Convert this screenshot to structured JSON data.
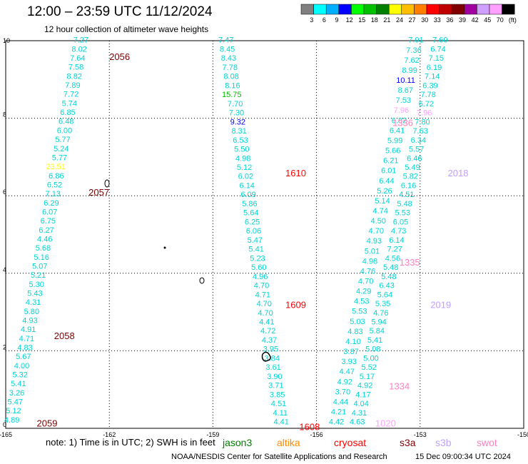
{
  "title": "12:00 – 23:59 UTC 11/12/2024",
  "subtitle": "12 hour collection of altimeter wave heights",
  "footer_note": "note:  1) Time is in UTC; 2) SWH is in feet",
  "credit": "NOAA/NESDIS Center for Satellite Applications and Research",
  "timestamp": "15 Dec 09:00:34 UTC 2024",
  "colors": {
    "grid": "#000000",
    "text_default": "#00d4d4"
  },
  "colorbar": {
    "labels": [
      "3",
      "6",
      "9",
      "12",
      "15",
      "18",
      "21",
      "24",
      "27",
      "30",
      "33",
      "36",
      "39",
      "42",
      "45",
      "70",
      "(ft)"
    ],
    "colors": [
      "#808080",
      "#00ffff",
      "#00b0ff",
      "#0000ff",
      "#00ff00",
      "#00c000",
      "#008000",
      "#ffff00",
      "#ffbf00",
      "#ff8000",
      "#ff0000",
      "#c00000",
      "#800000",
      "#a000a0",
      "#d0a0ff",
      "#ffa0ff",
      "#000000"
    ]
  },
  "satellites": [
    {
      "name": "jason3",
      "color": "#008000"
    },
    {
      "name": "altika",
      "color": "#ff8c00"
    },
    {
      "name": "cryosat",
      "color": "#ff0000"
    },
    {
      "name": "s3a",
      "color": "#800000"
    },
    {
      "name": "s3b",
      "color": "#c0a0ff"
    },
    {
      "name": "swot",
      "color": "#ff80c0"
    }
  ],
  "chart_data": {
    "type": "scatter",
    "title": "12 hour collection of altimeter wave heights",
    "xlim": [
      -165,
      -150
    ],
    "ylim": [
      0,
      10
    ],
    "x_ticks": [
      "-165",
      "-162",
      "-159",
      "-156",
      "-153",
      "-150"
    ],
    "y_ticks": [
      "0",
      "2",
      "4",
      "6",
      "8",
      "10"
    ],
    "grid": true,
    "tracks": [
      {
        "name": "track1",
        "color": "#00d4d4",
        "values": [
          "7.27",
          "8.02",
          "7.64",
          "7.58",
          "8.82",
          "7.89",
          "7.72",
          "5.74",
          "6.85",
          "6.48",
          "6.00",
          "5.77",
          "5.24",
          "5.77",
          "23.51",
          "6.86",
          "6.52",
          "7.13",
          "6.29",
          "6.07",
          "6.75",
          "6.27",
          "4.46",
          "5.68",
          "5.16",
          "5.07",
          "5.21",
          "5.30",
          "5.43",
          "4.31",
          "5.80",
          "4.93",
          "4.91",
          "4.71",
          "4.83",
          "5.67",
          "4.00",
          "5.32",
          "5.41",
          "3.26",
          "5.47",
          "5.12",
          "4.89"
        ],
        "x_start": -162.6,
        "x_end": -164.6,
        "y_start": 9.95,
        "y_end": 0.15
      },
      {
        "name": "track2",
        "color": "#00d4d4",
        "values": [
          "7.47",
          "8.45",
          "8.43",
          "7.78",
          "8.08",
          "8.16",
          "15.75",
          "7.70",
          "7.30",
          "9.32",
          "8.31",
          "6.53",
          "5.50",
          "4.98",
          "5.12",
          "6.02",
          "6.14",
          "6.09",
          "5.86",
          "5.64",
          "6.25",
          "6.06",
          "5.47",
          "5.41",
          "5.23",
          "5.60",
          "4.96",
          "4.70",
          "4.71",
          "4.70",
          "4.70",
          "4.41",
          "4.72",
          "4.37",
          "3.95",
          "3.84",
          "3.61",
          "3.90",
          "3.71",
          "3.85",
          "4.51",
          "4.11",
          "4.41"
        ],
        "x_start": -158.4,
        "x_end": -156.8,
        "y_start": 9.95,
        "y_end": 0.1
      },
      {
        "name": "track3",
        "color": "#00d4d4",
        "values": [
          "7.01",
          "7.36",
          "7.62",
          "8.99",
          "10.11",
          "8.67",
          "7.53",
          "7.96",
          "6.82",
          "6.41",
          "5.99",
          "5.66",
          "6.21",
          "6.01",
          "6.44",
          "5.26",
          "5.14",
          "4.74",
          "4.50",
          "4.70",
          "4.93",
          "5.01",
          "4.98",
          "4.76",
          "4.70",
          "4.29",
          "4.53",
          "5.53",
          "5.03",
          "4.83",
          "4.10",
          "3.87",
          "3.93",
          "4.47",
          "4.92",
          "3.70",
          "4.44",
          "4.21",
          "4.42"
        ],
        "x_start": -152.9,
        "x_end": -155.2,
        "y_start": 9.95,
        "y_end": 0.1
      },
      {
        "name": "track4",
        "color": "#00d4d4",
        "values": [
          "7.60",
          "6.74",
          "7.15",
          "6.19",
          "7.14",
          "6.39",
          "7.78",
          "6.72",
          "7.96",
          "7.80",
          "7.63",
          "6.34",
          "5.57",
          "6.46",
          "5.49",
          "5.82",
          "6.16",
          "4.51",
          "5.48",
          "5.53",
          "6.05",
          "4.73",
          "6.14",
          "7.27",
          "4.56",
          "5.48",
          "5.48",
          "6.43",
          "5.64",
          "5.35",
          "4.76",
          "5.94",
          "5.84",
          "5.41",
          "5.08",
          "5.00",
          "5.52",
          "5.17",
          "4.92",
          "4.17",
          "4.04",
          "4.31",
          "4.63"
        ],
        "x_start": -152.2,
        "x_end": -154.6,
        "y_start": 9.95,
        "y_end": 0.1
      }
    ],
    "special_colors": {
      "23.51": "#ffff00",
      "15.75": "#00c000",
      "9.32": "#0000ff",
      "10.11": "#0000ff",
      "7.96": "#ffa0ff"
    },
    "time_labels": [
      {
        "text": "2056",
        "x": -162.0,
        "y": 9.5,
        "color": "#800000"
      },
      {
        "text": "2057",
        "x": -162.6,
        "y": 6.0,
        "color": "#800000"
      },
      {
        "text": "2058",
        "x": -163.6,
        "y": 2.3,
        "color": "#800000"
      },
      {
        "text": "2059",
        "x": -164.1,
        "y": 0.05,
        "color": "#800000"
      },
      {
        "text": "1610",
        "x": -156.9,
        "y": 6.5,
        "color": "#ff0000"
      },
      {
        "text": "1609",
        "x": -156.9,
        "y": 3.1,
        "color": "#ff0000"
      },
      {
        "text": "1608",
        "x": -156.5,
        "y": -0.05,
        "color": "#ff0000"
      },
      {
        "text": "2018",
        "x": -152.2,
        "y": 6.5,
        "color": "#c0a0ff"
      },
      {
        "text": "2019",
        "x": -152.7,
        "y": 3.1,
        "color": "#c0a0ff"
      },
      {
        "text": "1336",
        "x": -153.8,
        "y": 7.8,
        "color": "#ff80c0"
      },
      {
        "text": "1335",
        "x": -153.6,
        "y": 4.2,
        "color": "#ff80c0"
      },
      {
        "text": "1334",
        "x": -153.9,
        "y": 1.0,
        "color": "#ff80c0"
      },
      {
        "text": "1020",
        "x": -154.3,
        "y": 0.05,
        "color": "#ffa0ff"
      }
    ]
  }
}
